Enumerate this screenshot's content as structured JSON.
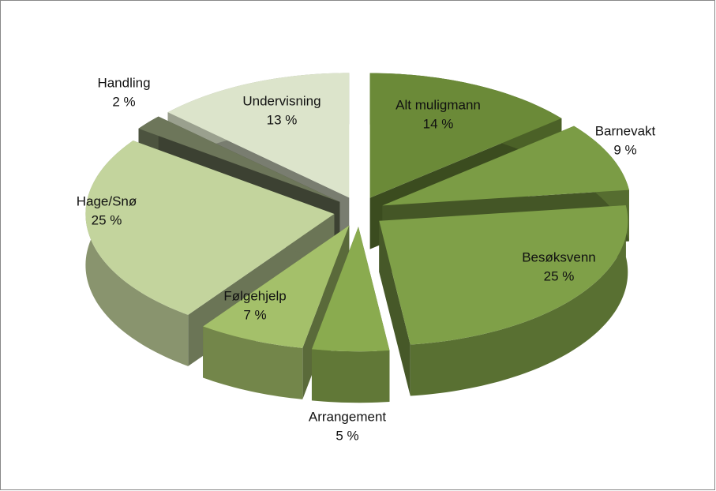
{
  "chart_data": {
    "type": "pie",
    "categories": [
      "Alt muligmann",
      "Barnevakt",
      "Besøksvenn",
      "Arrangement",
      "Følgehjelp",
      "Hage/Snø",
      "Handling",
      "Undervisning"
    ],
    "values": [
      14,
      9,
      25,
      5,
      7,
      25,
      2,
      13
    ],
    "value_labels": [
      "14 %",
      "9 %",
      "25 %",
      "5 %",
      "7 %",
      "25 %",
      "2 %",
      "13 %"
    ],
    "colors": [
      "#6b8a38",
      "#7b9c45",
      "#7fa048",
      "#8aab4f",
      "#a4c06a",
      "#c3d49d",
      "#6d765a",
      "#dce4cb"
    ]
  }
}
